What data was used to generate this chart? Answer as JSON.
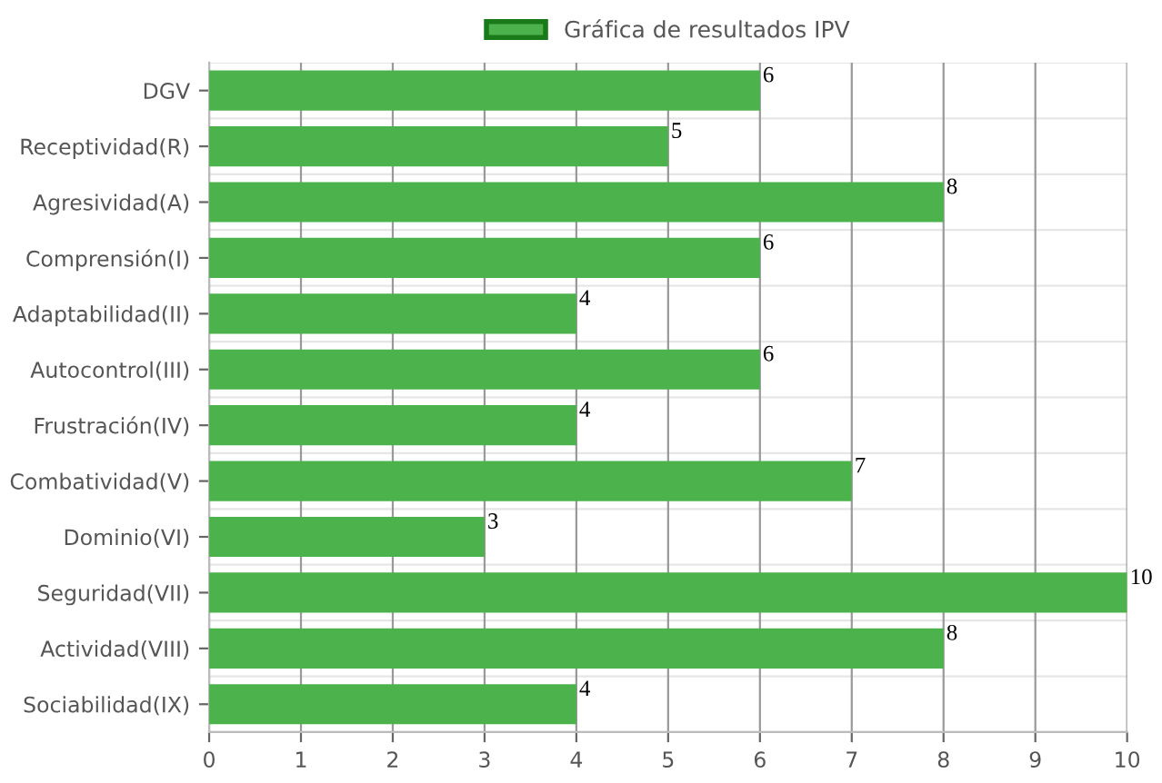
{
  "chart_data": {
    "type": "bar",
    "orientation": "horizontal",
    "categories": [
      "DGV",
      "Receptividad(R)",
      "Agresividad(A)",
      "Comprensión(I)",
      "Adaptabilidad(II)",
      "Autocontrol(III)",
      "Frustración(IV)",
      "Combatividad(V)",
      "Dominio(VI)",
      "Seguridad(VII)",
      "Actividad(VIII)",
      "Sociabilidad(IX)"
    ],
    "series": [
      {
        "name": "Gráfica de resultados IPV",
        "color": "#4cb34c",
        "values": [
          6,
          5,
          8,
          6,
          4,
          6,
          4,
          7,
          3,
          10,
          8,
          4
        ]
      }
    ],
    "xlim": [
      0,
      10
    ],
    "xticks": [
      0,
      1,
      2,
      3,
      4,
      5,
      6,
      7,
      8,
      9,
      10
    ],
    "grid": true,
    "legend": "top",
    "data_labels": true
  }
}
